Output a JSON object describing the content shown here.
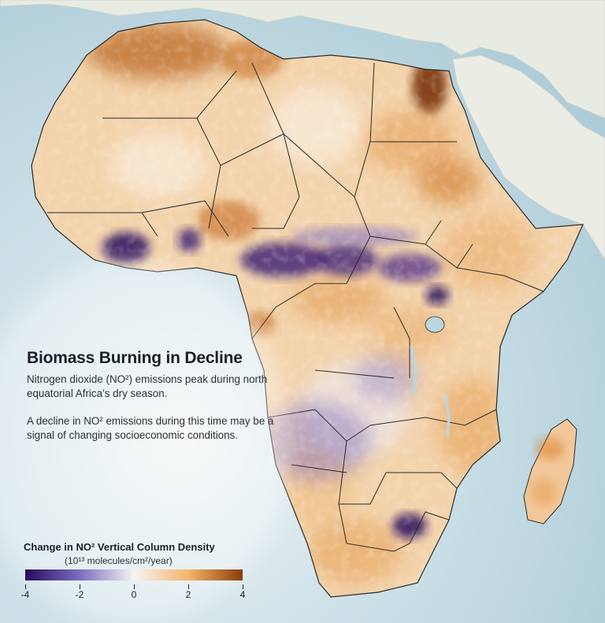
{
  "title": "Biomass Burning in Decline",
  "paragraph_1": "Nitrogen dioxide (NO²) emissions peak during north equatorial Africa’s dry season.",
  "paragraph_2": "A decline in NO² emissions during this time may be a signal of changing socioeconomic conditions.",
  "legend": {
    "title": "Change in NO² Vertical Column Density",
    "units": "(10¹³ molecules/cm²/year)",
    "ticks": [
      "-4",
      "-2",
      "0",
      "2",
      "4"
    ],
    "range": [
      -4,
      4
    ],
    "colors": {
      "negative_max": "#2a0a5e",
      "negative_mid": "#7b6cc0",
      "neutral": "#f6f3f2",
      "positive_mid": "#f4b56c",
      "positive_max": "#8a3c07"
    }
  },
  "map": {
    "ocean_color": "#b9d6e0",
    "land_other_color": "#e9ece2",
    "land_africa_base": "#f3d2a9"
  }
}
